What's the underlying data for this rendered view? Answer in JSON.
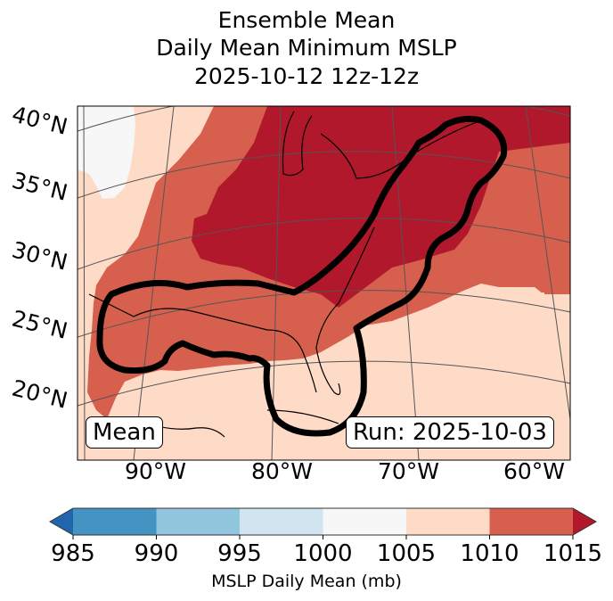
{
  "title": {
    "line1": "Ensemble Mean",
    "line2": "Daily Mean Minimum MSLP",
    "line3": "2025-10-12 12z-12z"
  },
  "map": {
    "lat_labels": [
      "40°N",
      "35°N",
      "30°N",
      "25°N",
      "20°N"
    ],
    "lon_labels": [
      "90°W",
      "80°W",
      "70°W",
      "60°W"
    ],
    "stat_badge": "Mean",
    "run_badge": "Run: 2025-10-03",
    "regions": [
      {
        "name": "northeast-us-great-lakes",
        "range_mb": "> 1015",
        "color": "#b2182b"
      },
      {
        "name": "central-us-gulf-atlantic",
        "range_mb": "1010-1015",
        "color": "#d6604d"
      },
      {
        "name": "west-and-south-periphery",
        "range_mb": "1005-1010",
        "color": "#fddbc7"
      },
      {
        "name": "southern-plains-patch",
        "range_mb": "1000-1005",
        "color": "#f7f7f7"
      }
    ],
    "contour_outline": "thick black highlighted region (Gulf of Mexico to Atlantic seaboard)"
  },
  "colorbar": {
    "label": "MSLP Daily Mean (mb)",
    "ticks": [
      "985",
      "990",
      "995",
      "1000",
      "1005",
      "1010",
      "1015"
    ],
    "bins": [
      {
        "range": "< 985",
        "color": "#2166ac"
      },
      {
        "range": "985-990",
        "color": "#4393c3"
      },
      {
        "range": "990-995",
        "color": "#92c5de"
      },
      {
        "range": "995-1000",
        "color": "#d1e5f0"
      },
      {
        "range": "1000-1005",
        "color": "#f7f7f7"
      },
      {
        "range": "1005-1010",
        "color": "#fddbc7"
      },
      {
        "range": "1010-1015",
        "color": "#d6604d"
      },
      {
        "range": "> 1015",
        "color": "#b2182b"
      }
    ]
  }
}
